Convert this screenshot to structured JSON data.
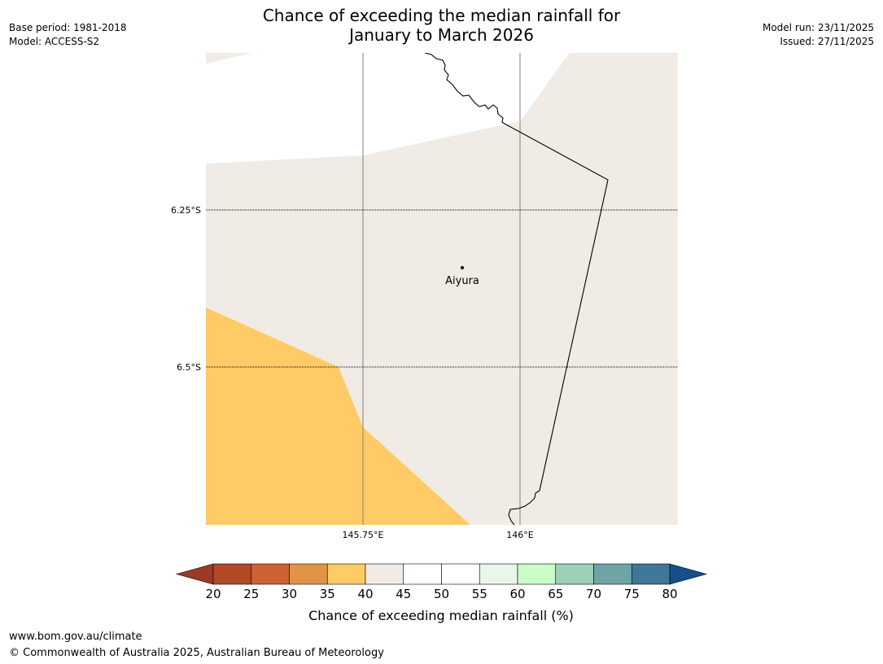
{
  "header": {
    "title_line1": "Chance of exceeding the median rainfall for",
    "title_line2": "January to March 2026",
    "base_period": "Base period: 1981-2018",
    "model": "Model: ACCESS-S2",
    "model_run": "Model run: 23/11/2025",
    "issued": "Issued: 27/11/2025"
  },
  "map": {
    "lat_labels": [
      "6.25°S",
      "6.5°S"
    ],
    "lon_labels": [
      "145.75°E",
      "146°E"
    ],
    "place": {
      "name": "Aiyura"
    },
    "fill_colors": {
      "class_40_45": "#f0ebe5",
      "class_35_40": "#fecb67",
      "outside": "#ffffff"
    }
  },
  "colorbar": {
    "ticks": [
      "20",
      "25",
      "30",
      "35",
      "40",
      "45",
      "50",
      "55",
      "60",
      "65",
      "70",
      "75",
      "80"
    ],
    "colors": [
      "#b14a25",
      "#cd6332",
      "#e29446",
      "#fecb67",
      "#f0ebe5",
      "#ffffff",
      "#ffffff",
      "#ebf6eb",
      "#c8fdc8",
      "#9ecfb9",
      "#6fa4a5",
      "#3e7797"
    ],
    "under_color": "#9c3a22",
    "over_color": "#164f8a",
    "label": "Chance of exceeding median rainfall (%)"
  },
  "footer": {
    "url": "www.bom.gov.au/climate",
    "copyright": "© Commonwealth of Australia 2025, Australian Bureau of Meteorology"
  }
}
